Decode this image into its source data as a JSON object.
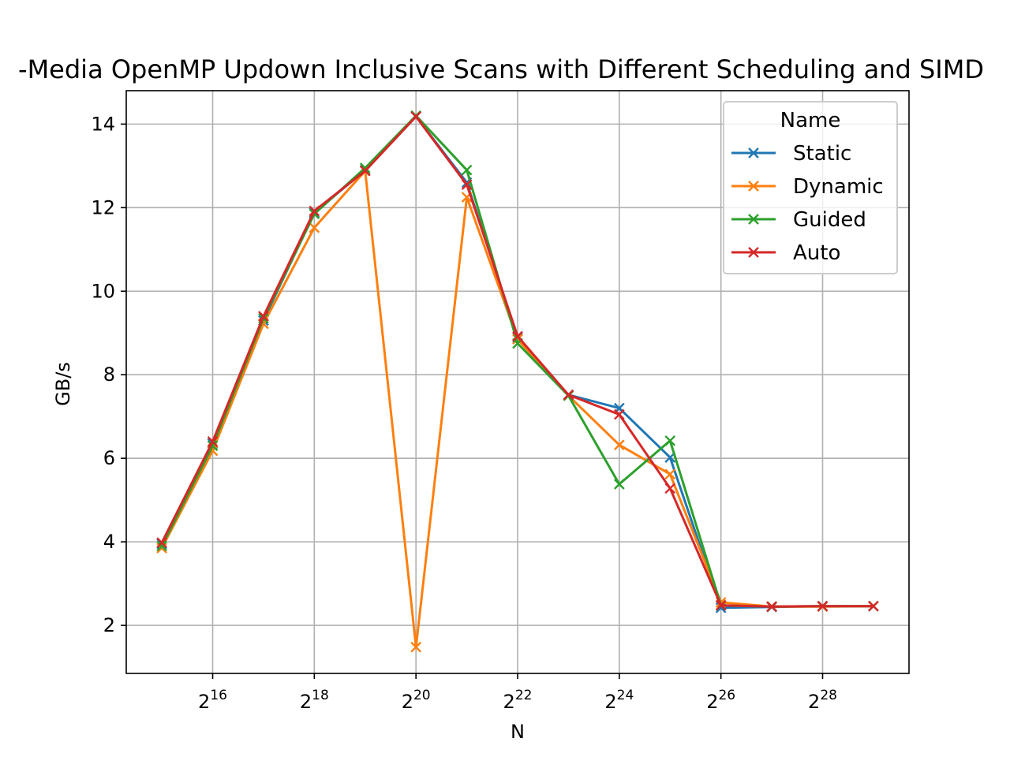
{
  "chart_data": {
    "type": "line",
    "title": "-Media OpenMP Updown Inclusive Scans with Different Scheduling and SIMD",
    "xlabel": "N",
    "ylabel": "GB/s",
    "x_scale": "log2",
    "x": [
      32768,
      65536,
      131072,
      262144,
      524288,
      1048576,
      2097152,
      4194304,
      8388608,
      16777216,
      33554432,
      67108864,
      134217728,
      268435456,
      536870912
    ],
    "x_ticks": [
      65536,
      262144,
      1048576,
      4194304,
      16777216,
      67108864,
      268435456
    ],
    "x_tick_labels": [
      {
        "base": "2",
        "exp": "16"
      },
      {
        "base": "2",
        "exp": "18"
      },
      {
        "base": "2",
        "exp": "20"
      },
      {
        "base": "2",
        "exp": "22"
      },
      {
        "base": "2",
        "exp": "24"
      },
      {
        "base": "2",
        "exp": "26"
      },
      {
        "base": "2",
        "exp": "28"
      }
    ],
    "y_ticks": [
      "2",
      "4",
      "6",
      "8",
      "10",
      "12",
      "14"
    ],
    "ylim": [
      0.85,
      14.8
    ],
    "grid": true,
    "legend_title": "Name",
    "legend_position": "top-right",
    "marker": "x",
    "series": [
      {
        "name": "Static",
        "color": "#1f77b4",
        "values": [
          3.95,
          6.35,
          9.3,
          11.88,
          12.9,
          14.18,
          12.6,
          8.88,
          7.52,
          7.2,
          6.02,
          2.42,
          2.44,
          2.46,
          2.46
        ]
      },
      {
        "name": "Dynamic",
        "color": "#ff7f0e",
        "values": [
          3.85,
          6.18,
          9.22,
          11.52,
          12.88,
          1.48,
          12.25,
          8.85,
          7.5,
          6.32,
          5.62,
          2.55,
          2.45,
          2.45,
          2.46
        ]
      },
      {
        "name": "Guided",
        "color": "#2ca02c",
        "values": [
          3.9,
          6.3,
          9.35,
          11.85,
          12.95,
          14.2,
          12.9,
          8.75,
          7.5,
          5.38,
          6.42,
          2.48,
          2.45,
          2.46,
          2.46
        ]
      },
      {
        "name": "Auto",
        "color": "#d62728",
        "values": [
          3.98,
          6.4,
          9.4,
          11.92,
          12.88,
          14.18,
          12.55,
          8.92,
          7.52,
          7.05,
          5.28,
          2.48,
          2.45,
          2.46,
          2.46
        ]
      }
    ]
  }
}
